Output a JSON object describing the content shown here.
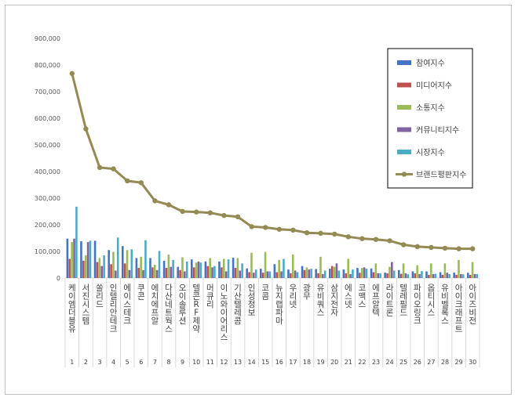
{
  "chart_data": {
    "type": "bar",
    "title": "",
    "xlabel": "",
    "ylabel": "",
    "ylim": [
      0,
      900000
    ],
    "yticks": [
      "0",
      "100,000",
      "200,000",
      "300,000",
      "400,000",
      "500,000",
      "600,000",
      "700,000",
      "800,000",
      "900,000"
    ],
    "grid": false,
    "legend_position": "top-right",
    "categories": [
      "케이엠더블유",
      "서진시스템",
      "쏠리드",
      "인텔리안테크",
      "에이스테크",
      "쿠콘",
      "에치에프알",
      "다산네트웍스",
      "오이솔루션",
      "텔콘RF제약",
      "머큐리",
      "이노와이어리스",
      "기산텔레콤",
      "인성정보",
      "코콤",
      "뉴지랩파마",
      "우리넷",
      "광무",
      "유비쿼스",
      "삼지전자",
      "에스넷",
      "코맥스",
      "에프알텍",
      "라이트론",
      "텔레필드",
      "파이오링크",
      "옵티시스",
      "유비벨록스",
      "아이크래프트",
      "아이즈비전"
    ],
    "ranks": [
      "1",
      "2",
      "3",
      "4",
      "5",
      "6",
      "7",
      "8",
      "9",
      "10",
      "11",
      "12",
      "13",
      "14",
      "15",
      "16",
      "17",
      "18",
      "19",
      "20",
      "21",
      "22",
      "23",
      "24",
      "25",
      "26",
      "27",
      "28",
      "29",
      "30"
    ],
    "series": [
      {
        "name": "참여지수",
        "type": "bar",
        "color": "#4472c4",
        "values": [
          148000,
          138000,
          140000,
          105000,
          120000,
          75000,
          75000,
          65000,
          42000,
          70000,
          62000,
          62000,
          76000,
          36000,
          35000,
          52000,
          32000,
          45000,
          34000,
          35000,
          32000,
          38000,
          36000,
          20000,
          30000,
          25000,
          25000,
          22000,
          20000,
          20000
        ]
      },
      {
        "name": "미디어지수",
        "type": "bar",
        "color": "#c0504d",
        "values": [
          72000,
          65000,
          60000,
          52000,
          55000,
          38000,
          40000,
          38000,
          30000,
          40000,
          45000,
          40000,
          38000,
          22000,
          20000,
          22000,
          18000,
          30000,
          18000,
          45000,
          18000,
          20000,
          22000,
          18000,
          16000,
          18000,
          12000,
          12000,
          12000,
          12000
        ]
      },
      {
        "name": "소통지수",
        "type": "bar",
        "color": "#9bbb59",
        "values": [
          135000,
          85000,
          75000,
          98000,
          105000,
          80000,
          50000,
          88000,
          78000,
          58000,
          75000,
          72000,
          75000,
          95000,
          98000,
          68000,
          88000,
          40000,
          80000,
          42000,
          72000,
          38000,
          55000,
          42000,
          55000,
          48000,
          55000,
          55000,
          68000,
          60000
        ]
      },
      {
        "name": "커뮤니티지수",
        "type": "bar",
        "color": "#8064a2",
        "values": [
          148000,
          135000,
          45000,
          28000,
          30000,
          30000,
          30000,
          42000,
          25000,
          62000,
          40000,
          25000,
          28000,
          20000,
          25000,
          25000,
          28000,
          32000,
          15000,
          55000,
          15000,
          40000,
          18000,
          60000,
          18000,
          15000,
          15000,
          20000,
          15000,
          15000
        ]
      },
      {
        "name": "시장지수",
        "type": "bar",
        "color": "#4bacc6",
        "values": [
          268000,
          140000,
          85000,
          152000,
          108000,
          142000,
          102000,
          68000,
          62000,
          58000,
          45000,
          70000,
          55000,
          32000,
          25000,
          72000,
          22000,
          35000,
          28000,
          28000,
          32000,
          35000,
          18000,
          28000,
          14000,
          26000,
          16000,
          15000,
          14000,
          15000
        ]
      },
      {
        "name": "브랜드평판지수",
        "type": "line",
        "color": "#948a54",
        "values": [
          768000,
          560000,
          415000,
          410000,
          365000,
          358000,
          290000,
          275000,
          250000,
          248000,
          245000,
          235000,
          230000,
          193000,
          190000,
          183000,
          180000,
          170000,
          168000,
          165000,
          155000,
          148000,
          145000,
          140000,
          125000,
          118000,
          115000,
          112000,
          110000,
          110000
        ]
      }
    ]
  }
}
